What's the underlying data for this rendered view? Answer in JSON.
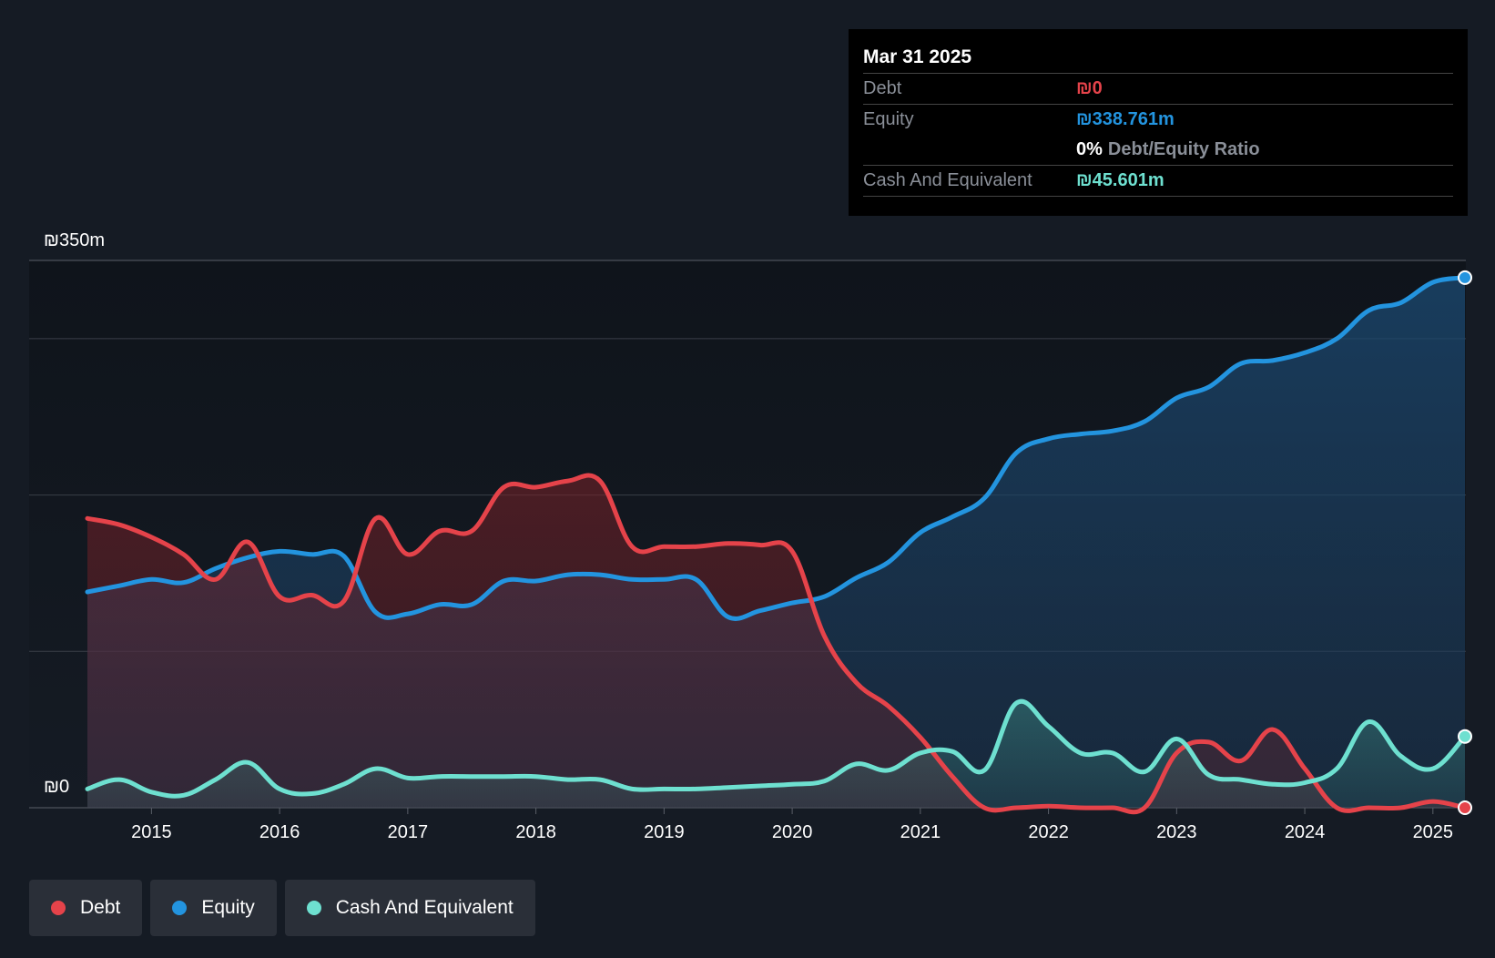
{
  "tooltip": {
    "date": "Mar 31 2025",
    "debt_label": "Debt",
    "debt_value": "₪0",
    "equity_label": "Equity",
    "equity_value": "₪338.761m",
    "ratio_pct": "0%",
    "ratio_label": "Debt/Equity Ratio",
    "cash_label": "Cash And Equivalent",
    "cash_value": "₪45.601m"
  },
  "legend": {
    "debt": "Debt",
    "equity": "Equity",
    "cash": "Cash And Equivalent"
  },
  "colors": {
    "debt": "#e5434a",
    "equity": "#2394df",
    "cash": "#6ee0d0",
    "background": "#151b24",
    "grid": "#3a3f48"
  },
  "chart_data": {
    "type": "line",
    "title": "",
    "xlabel": "",
    "ylabel": "",
    "y_top_label": "₪350m",
    "y_bottom_label": "₪0",
    "ylim": [
      0,
      350
    ],
    "xlim": [
      2014.5,
      2025.25
    ],
    "x_ticks": [
      2015,
      2016,
      2017,
      2018,
      2019,
      2020,
      2021,
      2022,
      2023,
      2024,
      2025
    ],
    "x_tick_labels": [
      "2015",
      "2016",
      "2017",
      "2018",
      "2019",
      "2020",
      "2021",
      "2022",
      "2023",
      "2024",
      "2025"
    ],
    "gridlines": [
      0,
      100,
      200,
      300,
      350
    ],
    "series": [
      {
        "name": "Debt",
        "points": [
          [
            2014.5,
            185
          ],
          [
            2014.75,
            181
          ],
          [
            2015.0,
            173
          ],
          [
            2015.25,
            162
          ],
          [
            2015.5,
            146
          ],
          [
            2015.75,
            170
          ],
          [
            2016.0,
            135
          ],
          [
            2016.25,
            136
          ],
          [
            2016.5,
            132
          ],
          [
            2016.75,
            185
          ],
          [
            2017.0,
            162
          ],
          [
            2017.25,
            177
          ],
          [
            2017.5,
            177
          ],
          [
            2017.75,
            205
          ],
          [
            2018.0,
            205
          ],
          [
            2018.25,
            209
          ],
          [
            2018.5,
            209
          ],
          [
            2018.75,
            167
          ],
          [
            2019.0,
            167
          ],
          [
            2019.25,
            167
          ],
          [
            2019.5,
            169
          ],
          [
            2019.75,
            168
          ],
          [
            2020.0,
            164
          ],
          [
            2020.25,
            110
          ],
          [
            2020.5,
            80
          ],
          [
            2020.75,
            65
          ],
          [
            2021.0,
            45
          ],
          [
            2021.25,
            20
          ],
          [
            2021.5,
            0
          ],
          [
            2021.75,
            0
          ],
          [
            2022.0,
            1
          ],
          [
            2022.25,
            0
          ],
          [
            2022.5,
            0
          ],
          [
            2022.75,
            0
          ],
          [
            2023.0,
            35
          ],
          [
            2023.25,
            42
          ],
          [
            2023.5,
            30
          ],
          [
            2023.75,
            50
          ],
          [
            2024.0,
            25
          ],
          [
            2024.25,
            0
          ],
          [
            2024.5,
            0
          ],
          [
            2024.75,
            0
          ],
          [
            2025.0,
            4
          ],
          [
            2025.25,
            0
          ]
        ]
      },
      {
        "name": "Equity",
        "points": [
          [
            2014.5,
            138
          ],
          [
            2014.75,
            142
          ],
          [
            2015.0,
            146
          ],
          [
            2015.25,
            144
          ],
          [
            2015.5,
            153
          ],
          [
            2015.75,
            160
          ],
          [
            2016.0,
            164
          ],
          [
            2016.25,
            162
          ],
          [
            2016.5,
            161
          ],
          [
            2016.75,
            125
          ],
          [
            2017.0,
            124
          ],
          [
            2017.25,
            130
          ],
          [
            2017.5,
            130
          ],
          [
            2017.75,
            145
          ],
          [
            2018.0,
            145
          ],
          [
            2018.25,
            149
          ],
          [
            2018.5,
            149
          ],
          [
            2018.75,
            146
          ],
          [
            2019.0,
            146
          ],
          [
            2019.25,
            146
          ],
          [
            2019.5,
            122
          ],
          [
            2019.75,
            126
          ],
          [
            2020.0,
            131
          ],
          [
            2020.25,
            135
          ],
          [
            2020.5,
            147
          ],
          [
            2020.75,
            157
          ],
          [
            2021.0,
            176
          ],
          [
            2021.25,
            186
          ],
          [
            2021.5,
            198
          ],
          [
            2021.75,
            227
          ],
          [
            2022.0,
            236
          ],
          [
            2022.25,
            239
          ],
          [
            2022.5,
            241
          ],
          [
            2022.75,
            247
          ],
          [
            2023.0,
            262
          ],
          [
            2023.25,
            269
          ],
          [
            2023.5,
            284
          ],
          [
            2023.75,
            286
          ],
          [
            2024.0,
            291
          ],
          [
            2024.25,
            300
          ],
          [
            2024.5,
            318
          ],
          [
            2024.75,
            323
          ],
          [
            2025.0,
            336
          ],
          [
            2025.25,
            339
          ]
        ]
      },
      {
        "name": "Cash And Equivalent",
        "points": [
          [
            2014.5,
            12
          ],
          [
            2014.75,
            18
          ],
          [
            2015.0,
            10
          ],
          [
            2015.25,
            8
          ],
          [
            2015.5,
            18
          ],
          [
            2015.75,
            29
          ],
          [
            2016.0,
            12
          ],
          [
            2016.25,
            9
          ],
          [
            2016.5,
            15
          ],
          [
            2016.75,
            25
          ],
          [
            2017.0,
            19
          ],
          [
            2017.25,
            20
          ],
          [
            2017.5,
            20
          ],
          [
            2017.75,
            20
          ],
          [
            2018.0,
            20
          ],
          [
            2018.25,
            18
          ],
          [
            2018.5,
            18
          ],
          [
            2018.75,
            12
          ],
          [
            2019.0,
            12
          ],
          [
            2019.25,
            12
          ],
          [
            2019.5,
            13
          ],
          [
            2019.75,
            14
          ],
          [
            2020.0,
            15
          ],
          [
            2020.25,
            17
          ],
          [
            2020.5,
            28
          ],
          [
            2020.75,
            24
          ],
          [
            2021.0,
            35
          ],
          [
            2021.25,
            36
          ],
          [
            2021.5,
            24
          ],
          [
            2021.75,
            67
          ],
          [
            2022.0,
            52
          ],
          [
            2022.25,
            35
          ],
          [
            2022.5,
            35
          ],
          [
            2022.75,
            23
          ],
          [
            2023.0,
            44
          ],
          [
            2023.25,
            21
          ],
          [
            2023.5,
            18
          ],
          [
            2023.75,
            15
          ],
          [
            2024.0,
            16
          ],
          [
            2024.25,
            25
          ],
          [
            2024.5,
            55
          ],
          [
            2024.75,
            33
          ],
          [
            2025.0,
            25
          ],
          [
            2025.25,
            45.6
          ]
        ]
      }
    ]
  }
}
